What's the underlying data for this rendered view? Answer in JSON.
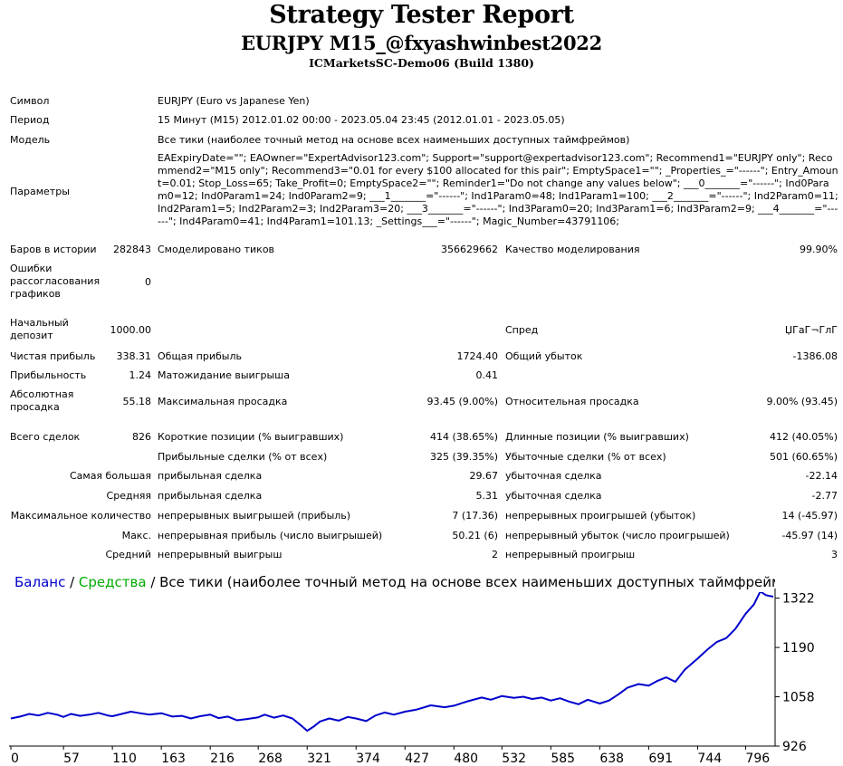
{
  "header": {
    "title": "Strategy Tester Report",
    "subtitle": "EURJPY M15_@fxyashwinbest2022",
    "server": "ICMarketsSC-Demo06 (Build 1380)"
  },
  "info": {
    "symbol_label": "Символ",
    "symbol_value": "EURJPY (Euro vs Japanese Yen)",
    "period_label": "Период",
    "period_value": "15 Минут (M15) 2012.01.02 00:00 - 2023.05.04 23:45 (2012.01.01 - 2023.05.05)",
    "model_label": "Модель",
    "model_value": "Все тики (наиболее точный метод на основе всех наименьших доступных таймфреймов)",
    "params_label": "Параметры",
    "params_value": "EAExpiryDate=\"\"; EAOwner=\"ExpertAdvisor123.com\"; Support=\"support@expertadvisor123.com\"; Recommend1=\"EURJPY only\"; Recommend2=\"M15 only\"; Recommend3=\"0.01 for every $100 allocated for this pair\"; EmptySpace1=\"\"; _Properties_=\"------\"; Entry_Amount=0.01; Stop_Loss=65; Take_Profit=0; EmptySpace2=\"\"; Reminder1=\"Do not change any values below\"; ___0_______=\"------\"; Ind0Param0=12; Ind0Param1=24; Ind0Param2=9; ___1_______=\"------\"; Ind1Param0=48; Ind1Param1=100; ___2_______=\"------\"; Ind2Param0=11; Ind2Param1=5; Ind2Param2=3; Ind2Param3=20; ___3_______=\"------\"; Ind3Param0=20; Ind3Param1=6; Ind3Param2=9; ___4_______=\"------\"; Ind4Param0=41; Ind4Param1=101.13; _Settings___=\"------\"; Magic_Number=43791106;"
  },
  "stats": {
    "bars_label": "Баров в истории",
    "bars_value": "282843",
    "ticks_label": "Смоделировано тиков",
    "ticks_value": "356629662",
    "quality_label": "Качество моделирования",
    "quality_value": "99.90%",
    "errors_label": "Ошибки рассогласования графиков",
    "errors_value": "0",
    "deposit_label": "Начальный депозит",
    "deposit_value": "1000.00",
    "spread_label": "Спред",
    "spread_value": "ЏГаГ¬ГлГ",
    "net_label": "Чистая прибыль",
    "net_value": "338.31",
    "gross_profit_label": "Общая прибыль",
    "gross_profit_value": "1724.40",
    "gross_loss_label": "Общий убыток",
    "gross_loss_value": "-1386.08",
    "pf_label": "Прибыльность",
    "pf_value": "1.24",
    "payoff_label": "Матожидание выигрыша",
    "payoff_value": "0.41",
    "abs_dd_label": "Абсолютная просадка",
    "abs_dd_value": "55.18",
    "max_dd_label": "Максимальная просадка",
    "max_dd_value": "93.45 (9.00%)",
    "rel_dd_label": "Относительная просадка",
    "rel_dd_value": "9.00% (93.45)",
    "trades_label": "Всего сделок",
    "trades_value": "826",
    "short_label": "Короткие позиции (% выигравших)",
    "short_value": "414 (38.65%)",
    "long_label": "Длинные позиции (% выигравших)",
    "long_value": "412 (40.05%)",
    "profit_trades_label": "Прибыльные сделки (% от всех)",
    "profit_trades_value": "325 (39.35%)",
    "loss_trades_label": "Убыточные сделки (% от всех)",
    "loss_trades_value": "501 (60.65%)",
    "largest_label": "Самая большая",
    "largest_profit_label": "прибыльная сделка",
    "largest_profit_value": "29.67",
    "largest_loss_label": "убыточная сделка",
    "largest_loss_value": "-22.14",
    "average_label": "Средняя",
    "avg_profit_label": "прибыльная сделка",
    "avg_profit_value": "5.31",
    "avg_loss_label": "убыточная сделка",
    "avg_loss_value": "-2.77",
    "max_count_label": "Максимальное количество",
    "cons_wins_label": "непрерывных выигрышей (прибыль)",
    "cons_wins_value": "7 (17.36)",
    "cons_losses_label": "непрерывных проигрышей (убыток)",
    "cons_losses_value": "14 (-45.97)",
    "max_label": "Макс.",
    "cons_profit_label": "непрерывная прибыль (число выигрышей)",
    "cons_profit_value": "50.21 (6)",
    "cons_loss_label": "непрерывный убыток (число проигрышей)",
    "cons_loss_value": "-45.97 (14)",
    "avg2_label": "Средний",
    "avg_cons_wins_label": "непрерывный выигрыш",
    "avg_cons_wins_value": "2",
    "avg_cons_losses_label": "непрерывный проигрыш",
    "avg_cons_losses_value": "3"
  },
  "chart_data": {
    "type": "line",
    "legend": {
      "balance": "Баланс",
      "sep1": " / ",
      "equity": "Средства",
      "sep2": " / ",
      "model": "Все тики (наиболее точный метод на основе всех наименьших доступных таймфреймов для г"
    },
    "x_ticks": [
      "0",
      "57",
      "110",
      "163",
      "216",
      "268",
      "321",
      "374",
      "427",
      "480",
      "532",
      "585",
      "638",
      "691",
      "744",
      "796"
    ],
    "y_ticks": [
      "1322",
      "1190",
      "1058",
      "926"
    ],
    "ylim": [
      926,
      1338
    ],
    "xlim": [
      0,
      826
    ],
    "colors": {
      "balance": "#0000cc",
      "equity": "#00aa00",
      "axis": "#000000"
    },
    "series": [
      {
        "name": "Баланс",
        "x": [
          0,
          10,
          20,
          30,
          40,
          50,
          57,
          65,
          75,
          85,
          95,
          105,
          110,
          120,
          130,
          140,
          150,
          163,
          175,
          185,
          195,
          205,
          216,
          225,
          235,
          245,
          255,
          268,
          275,
          285,
          295,
          305,
          315,
          321,
          328,
          335,
          345,
          355,
          365,
          374,
          385,
          395,
          405,
          415,
          427,
          440,
          455,
          470,
          480,
          495,
          510,
          520,
          532,
          545,
          555,
          565,
          575,
          585,
          595,
          605,
          615,
          625,
          638,
          648,
          658,
          668,
          680,
          691,
          700,
          710,
          720,
          730,
          744,
          755,
          765,
          775,
          785,
          796,
          805,
          812,
          818,
          826
        ],
        "values": [
          1000,
          1005,
          1012,
          1008,
          1015,
          1010,
          1004,
          1012,
          1007,
          1010,
          1015,
          1008,
          1006,
          1012,
          1018,
          1014,
          1010,
          1014,
          1005,
          1007,
          1000,
          1006,
          1010,
          1001,
          1005,
          995,
          998,
          1003,
          1010,
          1002,
          1008,
          1000,
          980,
          967,
          978,
          992,
          1000,
          994,
          1004,
          1000,
          993,
          1008,
          1016,
          1010,
          1018,
          1024,
          1035,
          1030,
          1034,
          1046,
          1056,
          1050,
          1060,
          1055,
          1058,
          1052,
          1056,
          1048,
          1054,
          1045,
          1038,
          1050,
          1040,
          1048,
          1064,
          1082,
          1092,
          1088,
          1100,
          1110,
          1098,
          1130,
          1160,
          1185,
          1205,
          1215,
          1240,
          1280,
          1305,
          1340,
          1330,
          1326
        ]
      }
    ]
  }
}
